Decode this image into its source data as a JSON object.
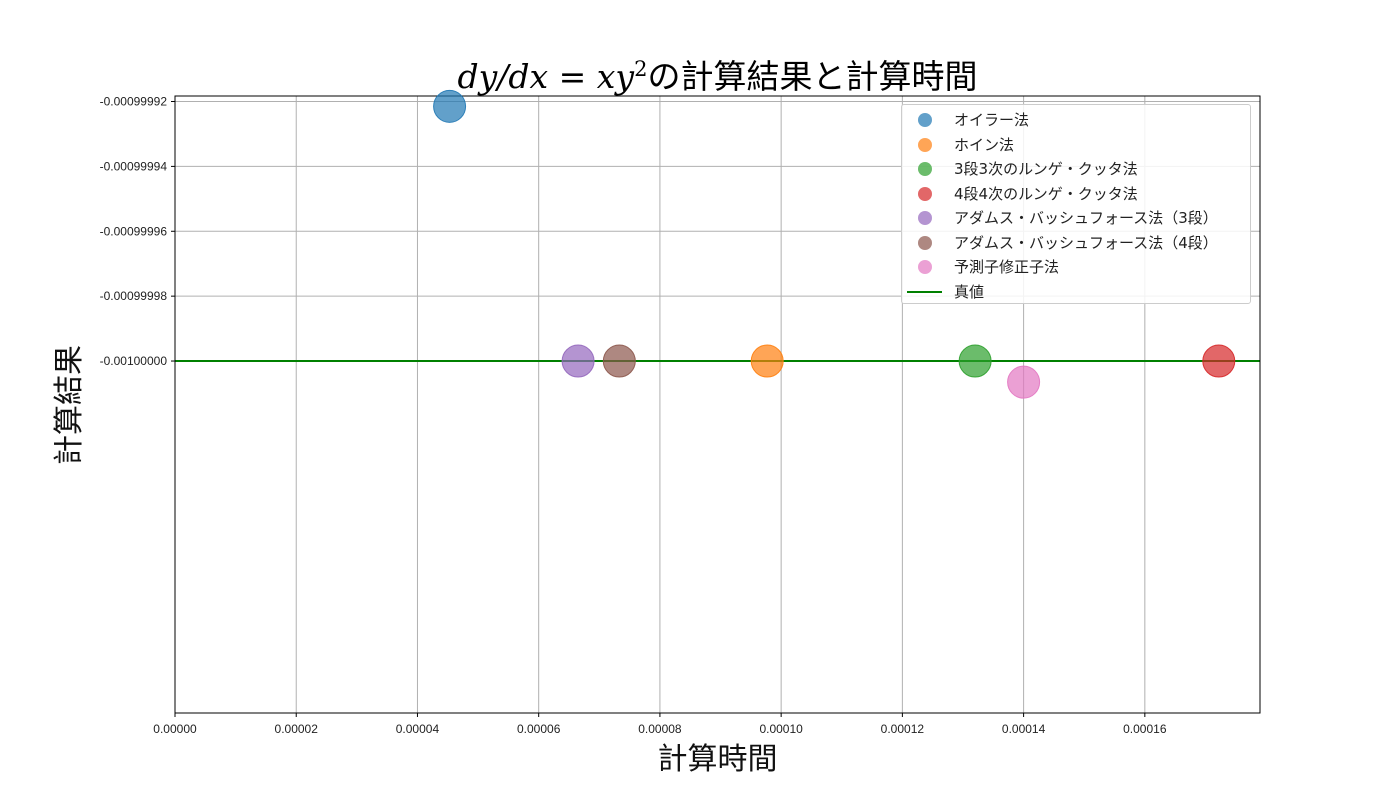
{
  "title": {
    "math": "dy/dx = xy",
    "math_sup": "2",
    "text": "の計算結果と計算時間"
  },
  "colors": {
    "grid": "#b0b0b0",
    "axis": "#000000",
    "true_line": "#008000"
  },
  "chart_data": {
    "type": "scatter",
    "xlabel": "計算時間",
    "ylabel": "計算結果",
    "xlim": [
      0.0,
      0.000179
    ],
    "ylim": [
      -0.0010001085,
      -0.0009999183
    ],
    "grid": true,
    "legend_position": "top-right",
    "x_ticks": [
      "0.00000",
      "0.00002",
      "0.00004",
      "0.00006",
      "0.00008",
      "0.00010",
      "0.00012",
      "0.00014",
      "0.00016"
    ],
    "x_tick_values": [
      0.0,
      2e-05,
      4e-05,
      6e-05,
      8e-05,
      0.0001,
      0.00012,
      0.00014,
      0.00016
    ],
    "y_ticks": [
      "-0.00099992",
      "-0.00099994",
      "-0.00099996",
      "-0.00099998",
      "-0.00100000"
    ],
    "y_tick_values": [
      -0.00099992,
      -0.00099994,
      -0.00099996,
      -0.00099998,
      -0.001
    ],
    "series": [
      {
        "name": "オイラー法",
        "color": "#1f77b4",
        "x": 4.53e-05,
        "y": -0.0009999215
      },
      {
        "name": "ホイン法",
        "color": "#ff7f0e",
        "x": 9.77e-05,
        "y": -0.001
      },
      {
        "name": "3段3次のルンゲ・クッタ法",
        "color": "#2ca02c",
        "x": 0.000132,
        "y": -0.001
      },
      {
        "name": "4段4次のルンゲ・クッタ法",
        "color": "#d62728",
        "x": 0.0001722,
        "y": -0.001
      },
      {
        "name": "アダムス・バッシュフォース法（3段）",
        "color": "#9467bd",
        "x": 6.65e-05,
        "y": -0.001
      },
      {
        "name": "アダムス・バッシュフォース法（4段）",
        "color": "#8c564b",
        "x": 7.33e-05,
        "y": -0.001
      },
      {
        "name": "予測子修正子法",
        "color": "#e377c2",
        "x": 0.00014,
        "y": -0.0010000065
      }
    ],
    "reference_line": {
      "name": "真値",
      "y": -0.001,
      "color": "#008000"
    }
  }
}
